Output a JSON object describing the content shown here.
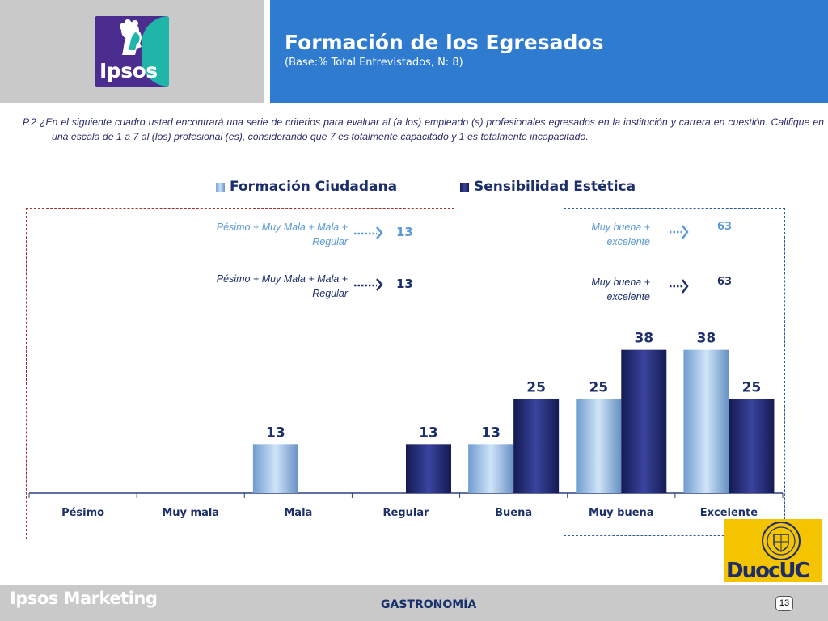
{
  "header": {
    "title": "Formación de los Egresados",
    "subtitle": "(Base:% Total Entrevistados, N: 8)",
    "logo_text": "Ipsos"
  },
  "question": "P.2 ¿En el siguiente cuadro usted encontrará una serie de criterios para evaluar al (a los) empleado (s) profesionales egresados en la institución y carrera en cuestión. Califique en una escala de 1 a 7 al (los) profesional (es), considerando que 7 es totalmente capacitado y 1 es totalmente incapacitado.",
  "summary": {
    "negative_label": "Pésimo + Muy Mala + Mala + Regular",
    "negative_values": [
      "13",
      "13"
    ],
    "positive_label": "Muy buena + excelente",
    "positive_values": [
      "63",
      "63"
    ]
  },
  "colors": {
    "series1": "#8fbbe8",
    "series2": "#232a6e",
    "header_blue": "#2e7bcf",
    "header_grey": "#c9c9c9",
    "text_navy": "#1c2f6b",
    "negative_box": "#a03030",
    "positive_box": "#2e5a9f"
  },
  "chart_data": {
    "type": "bar",
    "categories": [
      "Pésimo",
      "Muy mala",
      "Mala",
      "Regular",
      "Buena",
      "Muy buena",
      "Excelente"
    ],
    "series": [
      {
        "name": "Formación Ciudadana",
        "values": [
          0,
          0,
          13,
          0,
          13,
          25,
          38
        ]
      },
      {
        "name": "Sensibilidad Estética",
        "values": [
          0,
          0,
          0,
          13,
          25,
          38,
          25
        ]
      }
    ],
    "title": "",
    "xlabel": "",
    "ylabel": "",
    "ylim": [
      0,
      45
    ],
    "grid": false,
    "legend": "top"
  },
  "footer": {
    "brand": "Ipsos Marketing",
    "section": "GASTRONOMÍA",
    "page": "13",
    "client_logo_left": "Duoc",
    "client_logo_right": "UC"
  }
}
